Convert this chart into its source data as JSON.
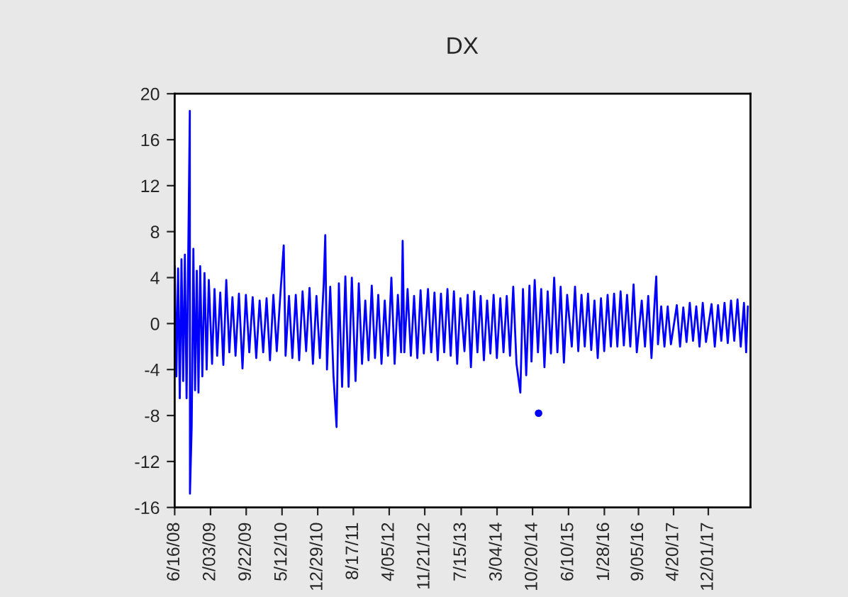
{
  "chart_data": {
    "type": "line",
    "title": "DX",
    "xlim": [
      "2008-06-16",
      "2018-08-31"
    ],
    "xticks": [
      {
        "value": "2008-06-16",
        "label": "6/16/08"
      },
      {
        "value": "2009-02-03",
        "label": "2/03/09"
      },
      {
        "value": "2009-09-22",
        "label": "9/22/09"
      },
      {
        "value": "2010-05-12",
        "label": "5/12/10"
      },
      {
        "value": "2010-12-29",
        "label": "12/29/10"
      },
      {
        "value": "2011-08-17",
        "label": "8/17/11"
      },
      {
        "value": "2012-04-05",
        "label": "4/05/12"
      },
      {
        "value": "2012-11-21",
        "label": "11/21/12"
      },
      {
        "value": "2013-07-15",
        "label": "7/15/13"
      },
      {
        "value": "2014-03-04",
        "label": "3/04/14"
      },
      {
        "value": "2014-10-20",
        "label": "10/20/14"
      },
      {
        "value": "2015-06-10",
        "label": "6/10/15"
      },
      {
        "value": "2016-01-28",
        "label": "1/28/16"
      },
      {
        "value": "2016-09-05",
        "label": "9/05/16"
      },
      {
        "value": "2017-04-20",
        "label": "4/20/17"
      },
      {
        "value": "2017-12-01",
        "label": "12/01/17"
      }
    ],
    "ylim": [
      -16,
      20
    ],
    "yticks": [
      -16,
      -12,
      -8,
      -4,
      0,
      4,
      8,
      12,
      16,
      20
    ],
    "series": [
      {
        "color": "#0000ff",
        "x": [
          "2008-06-16",
          "2008-06-27",
          "2008-07-08",
          "2008-07-19",
          "2008-07-30",
          "2008-08-10",
          "2008-08-21",
          "2008-09-01",
          "2008-09-12",
          "2008-09-22",
          "2008-09-23",
          "2008-10-04",
          "2008-10-15",
          "2008-10-26",
          "2008-11-06",
          "2008-11-17",
          "2008-11-28",
          "2008-12-12",
          "2008-12-26",
          "2009-01-09",
          "2009-01-23",
          "2009-02-13",
          "2009-03-01",
          "2009-03-18",
          "2009-04-07",
          "2009-04-27",
          "2009-05-16",
          "2009-06-05",
          "2009-06-25",
          "2009-07-15",
          "2009-08-06",
          "2009-08-29",
          "2009-09-20",
          "2009-10-12",
          "2009-11-03",
          "2009-11-26",
          "2009-12-18",
          "2010-01-10",
          "2010-02-01",
          "2010-02-23",
          "2010-03-17",
          "2010-04-08",
          "2010-04-30",
          "2010-05-23",
          "2010-06-04",
          "2010-06-26",
          "2010-07-18",
          "2010-08-09",
          "2010-08-31",
          "2010-09-22",
          "2010-10-15",
          "2010-11-06",
          "2010-11-28",
          "2010-12-21",
          "2011-01-12",
          "2011-02-06",
          "2011-02-16",
          "2011-02-27",
          "2011-03-20",
          "2011-04-10",
          "2011-04-30",
          "2011-05-15",
          "2011-06-05",
          "2011-06-26",
          "2011-07-17",
          "2011-08-07",
          "2011-08-31",
          "2011-09-21",
          "2011-10-12",
          "2011-11-02",
          "2011-11-23",
          "2011-12-14",
          "2012-01-04",
          "2012-01-25",
          "2012-02-15",
          "2012-03-07",
          "2012-03-28",
          "2012-04-19",
          "2012-05-10",
          "2012-05-31",
          "2012-06-21",
          "2012-07-01",
          "2012-07-12",
          "2012-08-02",
          "2012-08-23",
          "2012-09-13",
          "2012-10-04",
          "2012-10-25",
          "2012-11-15",
          "2012-12-12",
          "2013-01-02",
          "2013-01-23",
          "2013-02-13",
          "2013-03-06",
          "2013-03-27",
          "2013-04-17",
          "2013-05-08",
          "2013-05-29",
          "2013-06-19",
          "2013-07-10",
          "2013-08-05",
          "2013-08-26",
          "2013-09-16",
          "2013-10-07",
          "2013-10-28",
          "2013-11-18",
          "2013-12-09",
          "2013-12-30",
          "2014-01-20",
          "2014-02-10",
          "2014-03-03",
          "2014-03-25",
          "2014-04-15",
          "2014-05-06",
          "2014-05-27",
          "2014-06-17",
          "2014-07-08",
          "2014-08-02",
          "2014-08-19",
          "2014-09-09",
          "2014-09-30",
          "2014-10-13",
          "2014-11-03",
          "2014-11-24",
          "2014-12-15",
          "2015-01-05",
          "2015-01-26",
          "2015-02-16",
          "2015-03-09",
          "2015-03-30",
          "2015-04-20",
          "2015-05-11",
          "2015-06-01",
          "2015-07-01",
          "2015-07-22",
          "2015-08-12",
          "2015-09-02",
          "2015-09-23",
          "2015-10-14",
          "2015-11-04",
          "2015-11-25",
          "2015-12-16",
          "2016-01-06",
          "2016-01-27",
          "2016-02-18",
          "2016-03-10",
          "2016-03-31",
          "2016-04-21",
          "2016-05-12",
          "2016-06-02",
          "2016-06-23",
          "2016-07-14",
          "2016-08-04",
          "2016-08-25",
          "2016-09-26",
          "2016-10-17",
          "2016-11-07",
          "2016-11-28",
          "2016-12-19",
          "2016-12-29",
          "2017-01-09",
          "2017-01-30",
          "2017-02-20",
          "2017-03-13",
          "2017-04-03",
          "2017-05-11",
          "2017-06-01",
          "2017-06-22",
          "2017-07-13",
          "2017-08-03",
          "2017-08-24",
          "2017-09-14",
          "2017-10-05",
          "2017-10-26",
          "2017-11-16",
          "2017-12-22",
          "2018-01-12",
          "2018-02-02",
          "2018-02-23",
          "2018-03-16",
          "2018-04-06",
          "2018-04-27",
          "2018-05-18",
          "2018-06-08",
          "2018-06-29",
          "2018-07-20",
          "2018-08-03",
          "2018-08-14"
        ],
        "values": [
          5,
          -4.6,
          4.8,
          -6.5,
          5.6,
          -5,
          6,
          -6.5,
          6.3,
          18.5,
          -14.8,
          -9,
          6.5,
          -5.8,
          4.6,
          -6,
          5,
          -4.6,
          4.4,
          -4,
          3.8,
          -3.5,
          3,
          -2.8,
          2.7,
          -3.6,
          3.8,
          -2.5,
          2.3,
          -2.8,
          2.6,
          -3.9,
          2.5,
          -2.5,
          2.3,
          -3,
          2,
          -2.5,
          2.2,
          -3.2,
          2.5,
          -2.4,
          2.3,
          6.8,
          -2.8,
          2.4,
          -3,
          2.5,
          -3.2,
          2.8,
          -2.4,
          3.1,
          -3.5,
          2.4,
          -3,
          3.5,
          7.7,
          -4,
          3.2,
          -4.5,
          -9,
          3.5,
          -5.5,
          4.1,
          -5.5,
          4,
          -5,
          3.5,
          -3.5,
          2,
          -3.2,
          3.3,
          -3,
          2.5,
          -3.5,
          2,
          -2.8,
          4,
          -3.5,
          2.5,
          -2.5,
          7.2,
          -2.5,
          3,
          -2.8,
          2.4,
          -3,
          2.9,
          -2.6,
          3,
          -2.5,
          2.7,
          -3.2,
          2.6,
          -2.5,
          3,
          -2.8,
          2.8,
          -3.5,
          2.2,
          -2.4,
          2.5,
          -3.8,
          2.8,
          -2.5,
          2.4,
          -3.2,
          2,
          -2.6,
          2.5,
          -3,
          2.2,
          -2.5,
          2.4,
          -2.8,
          3.2,
          -3.5,
          -6,
          3,
          -4.5,
          3.3,
          -3.3,
          3.8,
          -2.5,
          3,
          -3.8,
          2.8,
          -2.6,
          4,
          -2.5,
          3.2,
          -3.4,
          2.5,
          -2,
          3.2,
          -2.4,
          2.5,
          -2,
          2.6,
          -2.3,
          2,
          -3,
          2.2,
          -2.4,
          2.5,
          -2,
          2.6,
          -2,
          2.8,
          -1.9,
          2.5,
          -2,
          3.4,
          -2.5,
          2,
          -2,
          2.4,
          -3,
          2,
          4.1,
          -1.8,
          1.5,
          -2,
          1.5,
          -1.8,
          1.6,
          -2,
          1.4,
          -1.6,
          1.8,
          -1.5,
          1.5,
          -2,
          1.8,
          -1.6,
          1.7,
          -2,
          1.6,
          -1.5,
          1.8,
          -1.7,
          2,
          -1.5,
          2.1,
          -2,
          1.8,
          -2.5,
          1.5
        ]
      },
      {
        "type": "scatter",
        "color": "#0000ff",
        "marker": "circle",
        "x": [
          "2014-11-28"
        ],
        "values": [
          -7.8
        ]
      }
    ]
  }
}
